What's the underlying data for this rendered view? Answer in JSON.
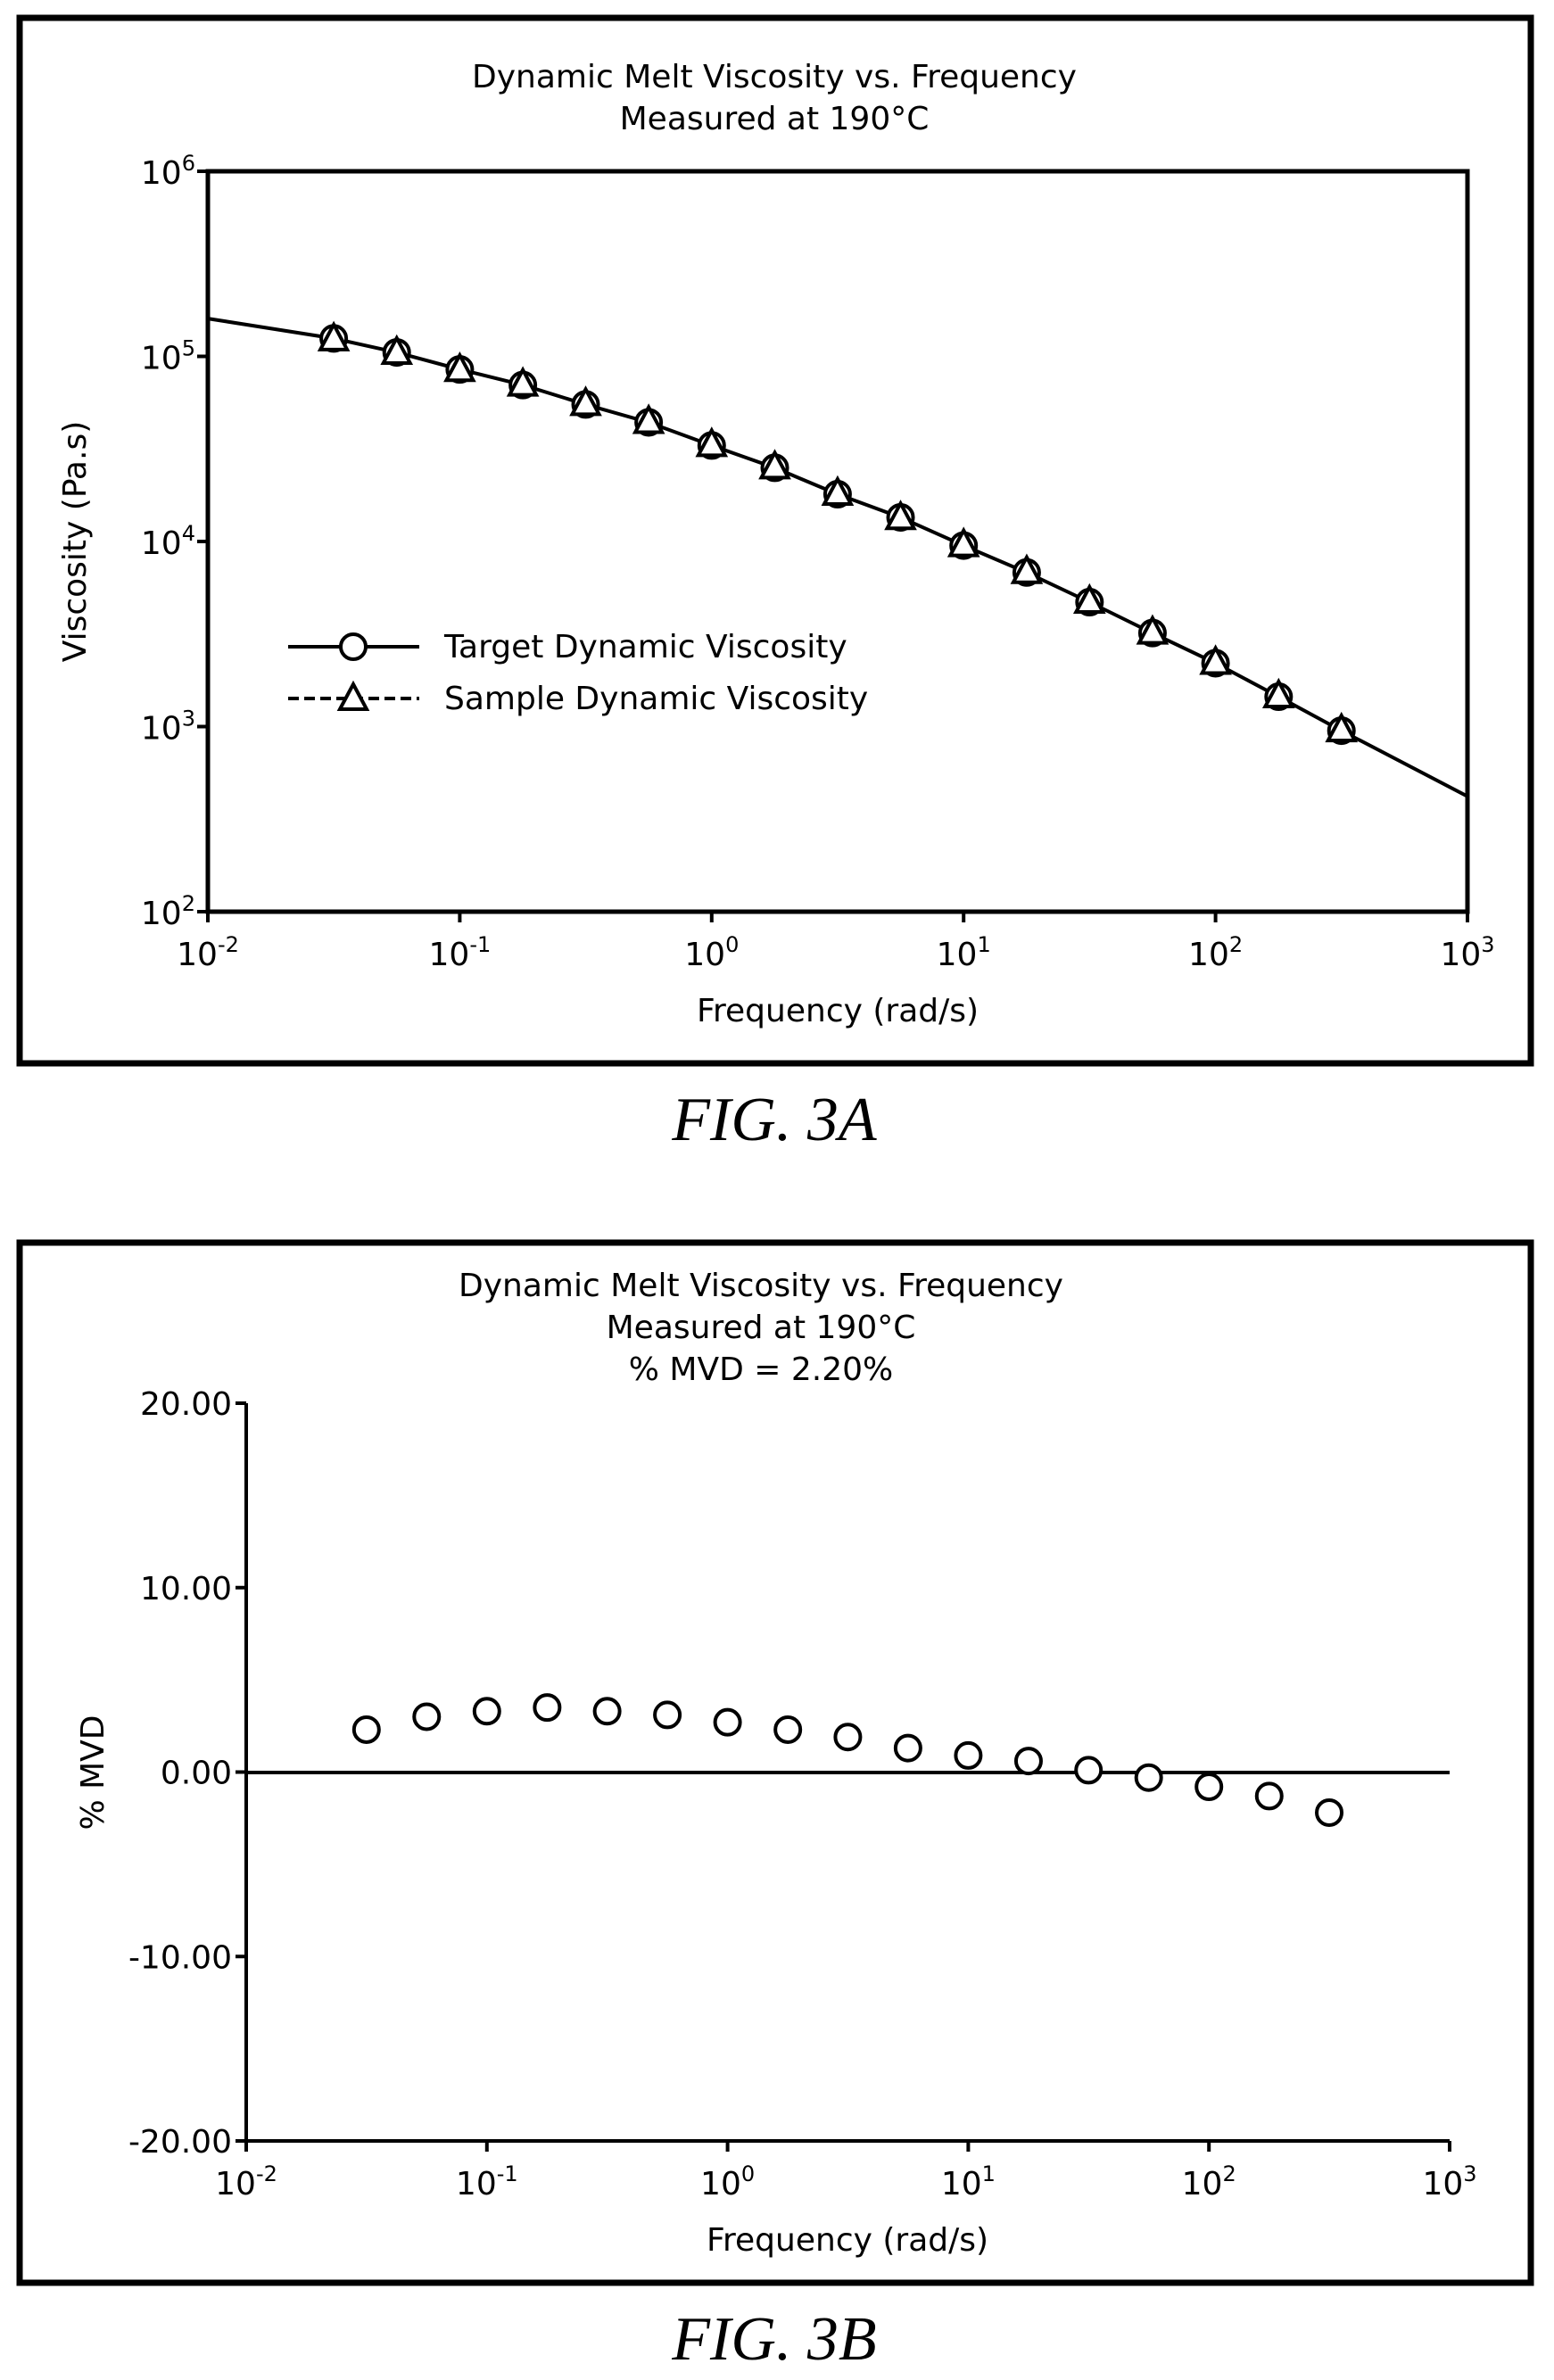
{
  "figures": [
    {
      "caption": "FIG. 3A"
    },
    {
      "caption": "FIG. 3B"
    }
  ],
  "chart_data": [
    {
      "type": "line",
      "title": "Dynamic Melt Viscosity vs. Frequency",
      "subtitle": "Measured at 190°C",
      "xlabel": "Frequency (rad/s)",
      "ylabel": "Viscosity (Pa.s)",
      "x_scale": "log",
      "y_scale": "log",
      "xlim": [
        0.01,
        1000
      ],
      "ylim": [
        100,
        1000000
      ],
      "x_ticks": [
        {
          "base": "10",
          "exp": "-2"
        },
        {
          "base": "10",
          "exp": "-1"
        },
        {
          "base": "10",
          "exp": "0"
        },
        {
          "base": "10",
          "exp": "1"
        },
        {
          "base": "10",
          "exp": "2"
        },
        {
          "base": "10",
          "exp": "3"
        }
      ],
      "y_ticks": [
        {
          "base": "10",
          "exp": "2"
        },
        {
          "base": "10",
          "exp": "3"
        },
        {
          "base": "10",
          "exp": "4"
        },
        {
          "base": "10",
          "exp": "5"
        },
        {
          "base": "10",
          "exp": "6"
        }
      ],
      "grid": false,
      "legend_position": "center-left",
      "series": [
        {
          "name": "Target Dynamic Viscosity",
          "marker": "circle",
          "x": [
            0.01,
            0.0316,
            0.0562,
            0.1,
            0.178,
            0.316,
            0.562,
            1.0,
            1.78,
            3.16,
            5.62,
            10.0,
            17.8,
            31.6,
            56.2,
            100,
            178,
            316,
            1000
          ],
          "y": [
            160000,
            125000,
            105000,
            85000,
            70000,
            55000,
            44000,
            33000,
            25000,
            18000,
            13500,
            9500,
            6800,
            4700,
            3200,
            2200,
            1450,
            950,
            420
          ]
        },
        {
          "name": "Sample Dynamic Viscosity",
          "marker": "triangle",
          "x": [
            0.0316,
            0.0562,
            0.1,
            0.178,
            0.316,
            0.562,
            1.0,
            1.78,
            3.16,
            5.62,
            10.0,
            17.8,
            31.6,
            56.2,
            100,
            178,
            316
          ],
          "y": [
            123000,
            104000,
            84000,
            70000,
            55000,
            44000,
            33000,
            25000,
            18000,
            13300,
            9500,
            6800,
            4700,
            3200,
            2200,
            1450,
            950
          ]
        }
      ]
    },
    {
      "type": "scatter",
      "title": "Dynamic Melt Viscosity vs. Frequency",
      "subtitle": "Measured at 190°C",
      "annotation": "% MVD = 2.20%",
      "xlabel": "Frequency (rad/s)",
      "ylabel": "% MVD",
      "x_scale": "log",
      "xlim": [
        0.01,
        1000
      ],
      "ylim": [
        -20,
        20
      ],
      "x_ticks": [
        {
          "base": "10",
          "exp": "-2"
        },
        {
          "base": "10",
          "exp": "-1"
        },
        {
          "base": "10",
          "exp": "0"
        },
        {
          "base": "10",
          "exp": "1"
        },
        {
          "base": "10",
          "exp": "2"
        },
        {
          "base": "10",
          "exp": "3"
        }
      ],
      "y_ticks": [
        "20.00",
        "10.00",
        "0.00",
        "-10.00",
        "-20.00"
      ],
      "reference_line_y": 0,
      "grid": false,
      "series": [
        {
          "marker": "circle",
          "x": [
            0.0316,
            0.0562,
            0.1,
            0.178,
            0.316,
            0.562,
            1.0,
            1.78,
            3.16,
            5.62,
            10.0,
            17.8,
            31.6,
            56.2,
            100,
            178,
            316
          ],
          "y": [
            2.3,
            3.0,
            3.3,
            3.5,
            3.3,
            3.1,
            2.7,
            2.3,
            1.9,
            1.3,
            0.9,
            0.6,
            0.1,
            -0.3,
            -0.8,
            -1.3,
            -2.2
          ]
        }
      ]
    }
  ]
}
